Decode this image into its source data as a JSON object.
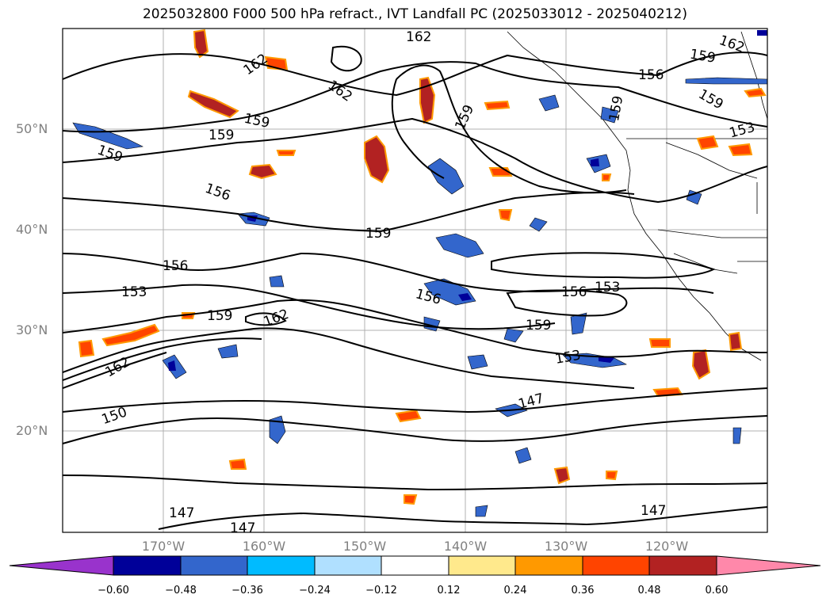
{
  "title": "2025032800 F000 500 hPa refract., IVT Landfall PC (2025033012 - 2025040212)",
  "lat_labels": [
    "50°N",
    "40°N",
    "30°N",
    "20°N"
  ],
  "lon_labels": [
    "170°W",
    "160°W",
    "150°W",
    "140°W",
    "130°W",
    "120°W"
  ],
  "contour_labels": [
    "162",
    "162",
    "162",
    "162",
    "159",
    "159",
    "159",
    "159",
    "159",
    "159",
    "159",
    "159",
    "156",
    "156",
    "156",
    "156",
    "156",
    "153",
    "153",
    "153",
    "153",
    "162",
    "162",
    "150",
    "147",
    "147",
    "147",
    "147"
  ],
  "colorbar": {
    "ticks": [
      "−0.60",
      "−0.48",
      "−0.36",
      "−0.24",
      "−0.12",
      "0.12",
      "0.24",
      "0.36",
      "0.48",
      "0.60"
    ],
    "colors": [
      "#9933cc",
      "#000099",
      "#3366cc",
      "#00bbff",
      "#b0e0ff",
      "#ffffff",
      "#ffe98c",
      "#ff9900",
      "#ff4400",
      "#b22222",
      "#ff88aa"
    ]
  }
}
